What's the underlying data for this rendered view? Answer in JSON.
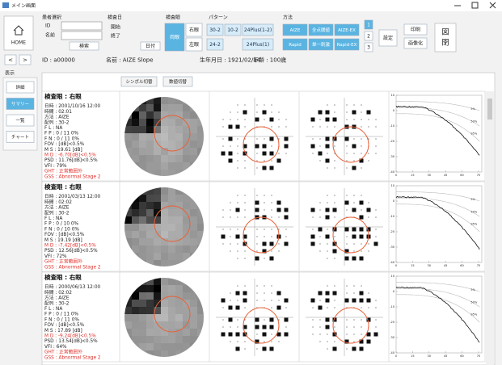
{
  "window": {
    "title": "メイン画面"
  },
  "toolbar": {
    "home": "HOME",
    "patient_select": "患者選択",
    "id_label": "ID",
    "name_label": "名前",
    "search": "検索",
    "exam_date": "検査日",
    "start": "開始",
    "end": "終了",
    "date_button": "日付",
    "exam_eye": "検査眼",
    "both_eyes": "両眼",
    "right_eye": "右眼",
    "left_eye": "左眼",
    "pattern": "パターン",
    "patterns": [
      "30-2",
      "10-2",
      "24Plus(1-2)",
      "24-2",
      "24Plus(1)"
    ],
    "method": "方法",
    "methods": [
      "AIZE",
      "全点閾値",
      "AIZE-EX",
      "Rapid",
      "単一刺激",
      "Rapid-EX"
    ],
    "pages": [
      "1",
      "2",
      "3"
    ],
    "settings": "設定",
    "print": "印刷",
    "image": "画像化",
    "close": [
      "図",
      "閉"
    ]
  },
  "patient": {
    "prev": "<",
    "next": ">",
    "id": "ID : a00000",
    "name": "名前 : AIZE Slope",
    "birth": "生年月日 : 1921/02/14",
    "age": "年齢 : 100歳"
  },
  "sidebar": {
    "title": "表示",
    "buttons": [
      "詳細",
      "サマリー",
      "一覧",
      "チャート"
    ]
  },
  "view_buttons": [
    "シンボル切替",
    "数値切替"
  ],
  "records": [
    {
      "lines": [
        {
          "text": "検査眼 : 右眼",
          "color": "#111"
        },
        {
          "text": "日時 : 2001/10/16 12:00",
          "color": "#222"
        },
        {
          "text": "時間 : 02:01",
          "color": "#222"
        },
        {
          "text": "方法 : AIZE",
          "color": "#222"
        },
        {
          "text": "配列 : 30-2",
          "color": "#222"
        },
        {
          "text": "F L : NA",
          "color": "#222"
        },
        {
          "text": "F P : 0 / 11 0%",
          "color": "#222"
        },
        {
          "text": "F N : 0 / 11 0%",
          "color": "#222"
        },
        {
          "text": "FOV : [dB]<0.5%",
          "color": "#222"
        },
        {
          "text": "M S : 19.61 [dB]",
          "color": "#222"
        },
        {
          "text": "M D : -6.70[dB]<0.5%",
          "color": "#e0322c"
        },
        {
          "text": "PSD : 11.76[dB]<0.5%",
          "color": "#222"
        },
        {
          "text": "VFI : 79%",
          "color": "#222"
        },
        {
          "text": "GHT : 正常範囲外",
          "color": "#e0322c"
        },
        {
          "text": "GSS : Abnormal Stage 2",
          "color": "#e0322c"
        }
      ]
    },
    {
      "lines": [
        {
          "text": "検査眼 : 右眼",
          "color": "#111"
        },
        {
          "text": "日時 : 2001/03/13 12:00",
          "color": "#222"
        },
        {
          "text": "時間 : 02:02",
          "color": "#222"
        },
        {
          "text": "方法 : AIZE",
          "color": "#222"
        },
        {
          "text": "配列 : 30-2",
          "color": "#222"
        },
        {
          "text": "F L : NA",
          "color": "#222"
        },
        {
          "text": "F P : 0 / 10 0%",
          "color": "#222"
        },
        {
          "text": "F N : 0 / 10 0%",
          "color": "#222"
        },
        {
          "text": "FOV : [dB]<0.5%",
          "color": "#222"
        },
        {
          "text": "M S : 19.19 [dB]",
          "color": "#222"
        },
        {
          "text": "M D : -7.42[dB]<0.5%",
          "color": "#e0322c"
        },
        {
          "text": "PSD : 12.56[dB]<0.5%",
          "color": "#222"
        },
        {
          "text": "VFI : 72%",
          "color": "#222"
        },
        {
          "text": "GHT : 正常範囲外",
          "color": "#e0322c"
        },
        {
          "text": "GSS : Abnormal Stage 2",
          "color": "#e0322c"
        }
      ]
    },
    {
      "lines": [
        {
          "text": "検査眼 : 右眼",
          "color": "#111"
        },
        {
          "text": "日時 : 2000/06/13 12:00",
          "color": "#222"
        },
        {
          "text": "時間 : 02:02",
          "color": "#222"
        },
        {
          "text": "方法 : AIZE",
          "color": "#222"
        },
        {
          "text": "配列 : 30-2",
          "color": "#222"
        },
        {
          "text": "F L : NA",
          "color": "#222"
        },
        {
          "text": "F P : 0 / 11 0%",
          "color": "#222"
        },
        {
          "text": "F N : 0 / 11 0%",
          "color": "#222"
        },
        {
          "text": "FOV : [dB]<0.5%",
          "color": "#222"
        },
        {
          "text": "M S : 17.89 [dB]",
          "color": "#222"
        },
        {
          "text": "M D : -9.24[dB]<0.5%",
          "color": "#e0322c"
        },
        {
          "text": "PSD : 13.54[dB]<0.5%",
          "color": "#222"
        },
        {
          "text": "VFI : 64%",
          "color": "#222"
        },
        {
          "text": "GHT : 正常範囲外",
          "color": "#e0322c"
        },
        {
          "text": "GSS : Abnormal Stage 2",
          "color": "#e0322c"
        }
      ]
    }
  ],
  "curve_axis": {
    "ylim": [
      -40,
      10
    ],
    "yticks": [
      10,
      0,
      -10,
      -20,
      -30,
      -40
    ],
    "xlim": [
      0,
      78
    ],
    "xticks": [
      0,
      15,
      30,
      45,
      60,
      75
    ],
    "labels": [
      "5%",
      "50%",
      "95%"
    ]
  }
}
